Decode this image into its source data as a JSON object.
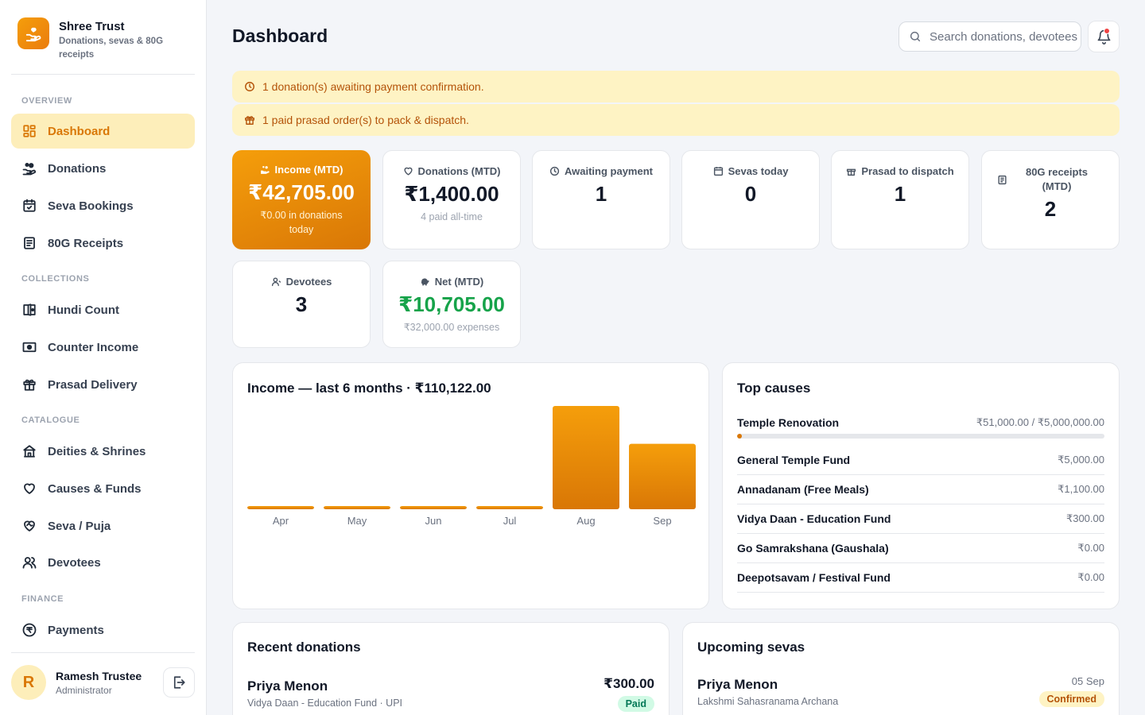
{
  "brand": {
    "name": "Shree Trust",
    "subtitle": "Donations, sevas & 80G receipts"
  },
  "nav": {
    "sections": {
      "overview": "OVERVIEW",
      "collections": "COLLECTIONS",
      "catalogue": "CATALOGUE",
      "finance": "FINANCE"
    },
    "items": {
      "dashboard": "Dashboard",
      "donations": "Donations",
      "seva_bookings": "Seva Bookings",
      "receipts_80g": "80G Receipts",
      "hundi_count": "Hundi Count",
      "counter_income": "Counter Income",
      "prasad_delivery": "Prasad Delivery",
      "deities_shrines": "Deities & Shrines",
      "causes_funds": "Causes & Funds",
      "seva_puja": "Seva / Puja",
      "devotees": "Devotees",
      "payments": "Payments"
    }
  },
  "user": {
    "initial": "R",
    "name": "Ramesh Trustee",
    "role": "Administrator"
  },
  "header": {
    "title": "Dashboard",
    "search_placeholder": "Search donations, devotees"
  },
  "alerts": {
    "awaiting": "1 donation(s) awaiting payment confirmation.",
    "prasad": "1 paid prasad order(s) to pack & dispatch."
  },
  "stats": {
    "income": {
      "label": "Income (MTD)",
      "value": "₹42,705.00",
      "sub": "₹0.00 in donations today"
    },
    "donations": {
      "label": "Donations (MTD)",
      "value": "₹1,400.00",
      "sub": "4 paid all-time"
    },
    "awaiting": {
      "label": "Awaiting payment",
      "value": "1"
    },
    "sevas": {
      "label": "Sevas today",
      "value": "0"
    },
    "prasad": {
      "label": "Prasad to dispatch",
      "value": "1"
    },
    "receipts": {
      "label": "80G receipts (MTD)",
      "value": "2"
    },
    "devotees": {
      "label": "Devotees",
      "value": "3"
    },
    "net": {
      "label": "Net (MTD)",
      "value": "₹10,705.00",
      "sub": "₹32,000.00 expenses",
      "color": "#16a34a"
    }
  },
  "chart_data": {
    "type": "bar",
    "title": "Income — last 6 months · ₹110,122.00",
    "categories": [
      "Apr",
      "May",
      "Jun",
      "Jul",
      "Aug",
      "Sep"
    ],
    "values": [
      0,
      0,
      0,
      0,
      67417,
      42705
    ],
    "xlabel": "",
    "ylabel": "",
    "grid": false,
    "bar_color_top": "#f59e0b",
    "bar_color_bottom": "#d97706"
  },
  "causes": {
    "title": "Top causes",
    "items": [
      {
        "name": "Temple Renovation",
        "amount": "₹51,000.00 / ₹5,000,000.00",
        "progress": 0.0102
      },
      {
        "name": "General Temple Fund",
        "amount": "₹5,000.00"
      },
      {
        "name": "Annadanam (Free Meals)",
        "amount": "₹1,100.00"
      },
      {
        "name": "Vidya Daan - Education Fund",
        "amount": "₹300.00"
      },
      {
        "name": "Go Samrakshana (Gaushala)",
        "amount": "₹0.00"
      },
      {
        "name": "Deepotsavam / Festival Fund",
        "amount": "₹0.00"
      }
    ]
  },
  "recent_donations": {
    "title": "Recent donations",
    "items": [
      {
        "name": "Priya Menon",
        "sub": "Vidya Daan - Education Fund · UPI",
        "amount": "₹300.00",
        "status": "Paid"
      }
    ]
  },
  "upcoming_sevas": {
    "title": "Upcoming sevas",
    "items": [
      {
        "name": "Priya Menon",
        "sub": "Lakshmi Sahasranama Archana",
        "date": "05 Sep",
        "status": "Confirmed"
      }
    ]
  },
  "colors": {
    "accent": "#d97706",
    "accent_light": "#fdeeba",
    "alert_bg": "#fef3c4",
    "positive": "#16a34a"
  }
}
